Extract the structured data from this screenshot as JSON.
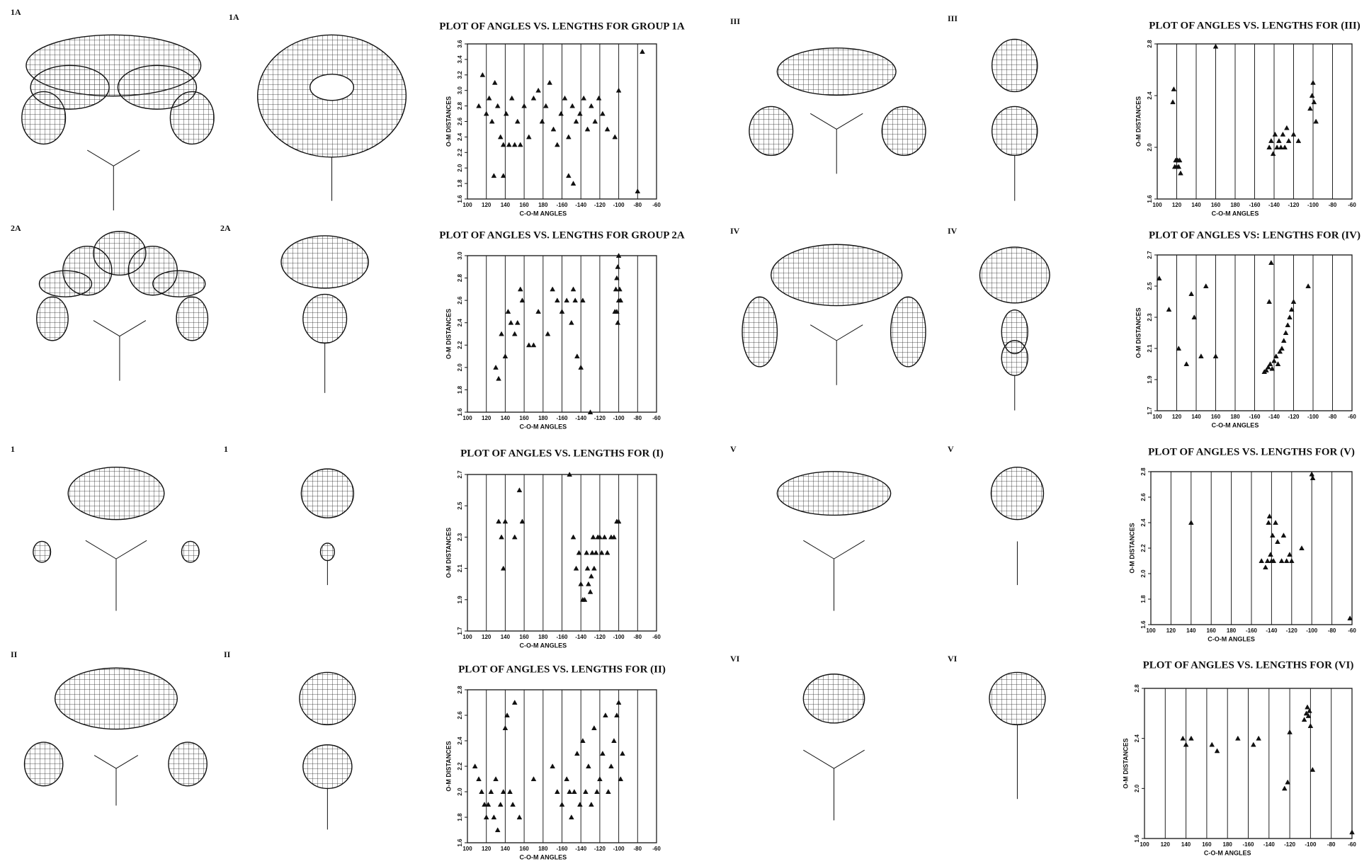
{
  "panels": [
    "1A",
    "1A",
    "2A",
    "2A",
    "1",
    "1",
    "II",
    "II",
    "III",
    "III",
    "IV",
    "IV",
    "V",
    "V",
    "VI",
    "VI"
  ],
  "chart_data": [
    {
      "type": "scatter",
      "title": "PLOT OF ANGLES VS. LENGTHS FOR GROUP 1A",
      "x_label": "C-O-M ANGLES",
      "y_label": "O-M DISTANCES",
      "marker": "triangle",
      "color": "#111",
      "grid": "x",
      "xlim": [
        100,
        -60
      ],
      "xticks": [
        100,
        120,
        140,
        160,
        180,
        -160,
        -140,
        -120,
        -100,
        -80,
        -60
      ],
      "ylim": [
        1.6,
        3.6
      ],
      "yticks": [
        1.6,
        1.8,
        {
          "value": 2,
          "label": "2.0"
        },
        2.2,
        2.4,
        2.6,
        2.8,
        {
          "value": 3,
          "label": "3.0"
        },
        3.2,
        3.4,
        3.6
      ],
      "x": [
        112,
        116,
        120,
        123,
        126,
        129,
        132,
        135,
        138,
        141,
        144,
        147,
        150,
        153,
        156,
        160,
        165,
        170,
        175,
        179,
        -177,
        -173,
        -169,
        -165,
        -161,
        -157,
        -153,
        -149,
        -145,
        -141,
        -137,
        -133,
        -129,
        -125,
        -121,
        -117,
        -112,
        -104,
        -100,
        -75,
        128,
        138,
        -153,
        -148,
        -80
      ],
      "values": [
        2.8,
        3.2,
        2.7,
        2.9,
        2.6,
        3.1,
        2.8,
        2.4,
        2.3,
        2.7,
        2.3,
        2.9,
        2.3,
        2.6,
        2.3,
        2.8,
        2.4,
        2.9,
        3.0,
        2.6,
        2.8,
        3.1,
        2.5,
        2.3,
        2.7,
        2.9,
        2.4,
        2.8,
        2.6,
        2.7,
        2.9,
        2.5,
        2.8,
        2.6,
        2.9,
        2.7,
        2.5,
        2.4,
        3.0,
        3.5,
        1.9,
        1.9,
        1.9,
        1.8,
        1.7
      ]
    },
    {
      "type": "scatter",
      "title": "PLOT OF ANGLES VS. LENGTHS FOR GROUP 2A",
      "x_label": "C-O-M ANGLES",
      "y_label": "O-M DISTANCES",
      "marker": "triangle",
      "color": "#111",
      "grid": "x",
      "xlim": [
        100,
        -60
      ],
      "xticks": [
        100,
        120,
        140,
        160,
        180,
        -160,
        -140,
        -120,
        -100,
        -80,
        -60
      ],
      "ylim": [
        1.6,
        3.0
      ],
      "yticks": [
        1.6,
        1.8,
        {
          "value": 2,
          "label": "2.0"
        },
        2.2,
        2.4,
        2.6,
        2.8,
        {
          "value": 3,
          "label": "3.0"
        }
      ],
      "x": [
        130,
        133,
        136,
        140,
        143,
        146,
        150,
        153,
        156,
        158,
        165,
        170,
        175,
        -175,
        -170,
        -165,
        -160,
        -155,
        -150,
        -148,
        -146,
        -144,
        -140,
        -138,
        -104,
        -103,
        -102,
        -101,
        -100,
        -99,
        -101,
        -102,
        -100,
        -98,
        -130
      ],
      "values": [
        2.0,
        1.9,
        2.3,
        2.1,
        2.5,
        2.4,
        2.3,
        2.4,
        2.7,
        2.6,
        2.2,
        2.2,
        2.5,
        2.3,
        2.7,
        2.6,
        2.5,
        2.6,
        2.4,
        2.7,
        2.6,
        2.1,
        2.0,
        2.6,
        2.5,
        2.7,
        2.8,
        2.9,
        2.6,
        2.7,
        2.4,
        2.5,
        3.0,
        2.6,
        1.6
      ]
    },
    {
      "type": "scatter",
      "title": "PLOT OF ANGLES VS. LENGTHS FOR (I)",
      "x_label": "C-O-M ANGLES",
      "y_label": "O-M DISTANCES",
      "marker": "triangle",
      "color": "#111",
      "grid": "x",
      "xlim": [
        100,
        -60
      ],
      "xticks": [
        100,
        120,
        140,
        160,
        180,
        -160,
        -140,
        -120,
        -100,
        -80,
        -60
      ],
      "ylim": [
        1.7,
        2.7
      ],
      "yticks": [
        1.7,
        1.9,
        2.1,
        2.3,
        2.5,
        2.7
      ],
      "x": [
        133,
        136,
        138,
        140,
        150,
        155,
        158,
        -152,
        -148,
        -145,
        -142,
        -140,
        -138,
        -136,
        -134,
        -133,
        -132,
        -130,
        -129,
        -128,
        -127,
        -126,
        -124,
        -122,
        -120,
        -118,
        -115,
        -112,
        -108,
        -105,
        -102,
        -100
      ],
      "values": [
        2.4,
        2.3,
        2.1,
        2.4,
        2.3,
        2.6,
        2.4,
        2.7,
        2.3,
        2.1,
        2.2,
        2.0,
        1.9,
        1.9,
        2.2,
        2.1,
        2.0,
        1.95,
        2.05,
        2.2,
        2.3,
        2.1,
        2.2,
        2.3,
        2.3,
        2.2,
        2.3,
        2.2,
        2.3,
        2.3,
        2.4,
        2.4
      ]
    },
    {
      "type": "scatter",
      "title": "PLOT OF ANGLES VS. LENGTHS FOR (II)",
      "x_label": "C-O-M ANGLES",
      "y_label": "O-M DISTANCES",
      "marker": "triangle",
      "color": "#111",
      "grid": "x",
      "xlim": [
        100,
        -60
      ],
      "xticks": [
        100,
        120,
        140,
        160,
        180,
        -160,
        -140,
        -120,
        -100,
        -80,
        -60
      ],
      "ylim": [
        1.6,
        2.8
      ],
      "yticks": [
        1.6,
        1.8,
        {
          "value": 2,
          "label": "2.0"
        },
        2.2,
        2.4,
        2.6,
        2.8
      ],
      "x": [
        108,
        112,
        115,
        118,
        120,
        122,
        125,
        128,
        130,
        132,
        135,
        138,
        140,
        142,
        145,
        148,
        150,
        155,
        170,
        -170,
        -165,
        -160,
        -155,
        -152,
        -150,
        -147,
        -144,
        -141,
        -138,
        -135,
        -132,
        -129,
        -126,
        -123,
        -120,
        -117,
        -114,
        -111,
        -108,
        -105,
        -102,
        -100,
        -98,
        -96
      ],
      "values": [
        2.2,
        2.1,
        2.0,
        1.9,
        1.8,
        1.9,
        2.0,
        1.8,
        2.1,
        1.7,
        1.9,
        2.0,
        2.5,
        2.6,
        2.0,
        1.9,
        2.7,
        1.8,
        2.1,
        2.2,
        2.0,
        1.9,
        2.1,
        2.0,
        1.8,
        2.0,
        2.3,
        1.9,
        2.4,
        2.0,
        2.2,
        1.9,
        2.5,
        2.0,
        2.1,
        2.3,
        2.6,
        2.0,
        2.2,
        2.4,
        2.6,
        2.7,
        2.1,
        2.3
      ]
    },
    {
      "type": "scatter",
      "title": "PLOT OF ANGLES VS. LENGTHS FOR (III)",
      "x_label": "C-O-M ANGLES",
      "y_label": "O-M DISTANCES",
      "marker": "triangle",
      "color": "#111",
      "grid": "x",
      "xlim": [
        100,
        -60
      ],
      "xticks": [
        100,
        120,
        140,
        160,
        180,
        -160,
        -140,
        -120,
        -100,
        -80,
        -60
      ],
      "ylim": [
        1.6,
        2.8
      ],
      "yticks": [
        1.6,
        {
          "value": 2,
          "label": "2.0"
        },
        2.4,
        2.8
      ],
      "x": [
        116,
        117,
        118,
        119,
        120,
        121,
        122,
        123,
        124,
        160,
        -145,
        -143,
        -141,
        -139,
        -137,
        -135,
        -133,
        -131,
        -129,
        -127,
        -125,
        -120,
        -115,
        -103,
        -101,
        -100,
        -99,
        -97
      ],
      "values": [
        2.35,
        2.45,
        1.85,
        1.9,
        1.85,
        1.9,
        1.85,
        1.9,
        1.8,
        2.78,
        2.0,
        2.05,
        1.95,
        2.1,
        2.0,
        2.05,
        2.0,
        2.1,
        2.0,
        2.15,
        2.05,
        2.1,
        2.05,
        2.3,
        2.4,
        2.5,
        2.35,
        2.2
      ]
    },
    {
      "type": "scatter",
      "title": "PLOT OF ANGLES VS: LENGTHS FOR (IV)",
      "x_label": "C-O-M ANGLES",
      "y_label": "O-M DISTANCES",
      "marker": "triangle",
      "color": "#111",
      "grid": "x",
      "xlim": [
        100,
        -60
      ],
      "xticks": [
        100,
        120,
        140,
        160,
        180,
        -160,
        -140,
        -120,
        -100,
        -80,
        -60
      ],
      "ylim": [
        1.7,
        2.7
      ],
      "yticks": [
        1.7,
        1.9,
        2.1,
        2.3,
        2.5,
        2.7
      ],
      "x": [
        102,
        112,
        122,
        130,
        135,
        138,
        145,
        150,
        160,
        -150,
        -148,
        -146,
        -144,
        -142,
        -140,
        -138,
        -136,
        -134,
        -132,
        -130,
        -128,
        -126,
        -124,
        -122,
        -120,
        -105,
        -143,
        -145
      ],
      "values": [
        2.55,
        2.35,
        2.1,
        2.0,
        2.45,
        2.3,
        2.05,
        2.5,
        2.05,
        1.95,
        1.96,
        1.98,
        2.0,
        1.97,
        2.02,
        2.05,
        2.0,
        2.08,
        2.1,
        2.15,
        2.2,
        2.25,
        2.3,
        2.35,
        2.4,
        2.5,
        2.65,
        2.4
      ]
    },
    {
      "type": "scatter",
      "title": "PLOT OF ANGLES VS. LENGTHS FOR (V)",
      "x_label": "C-O-M ANGLES",
      "y_label": "O-M DISTANCES",
      "marker": "triangle",
      "color": "#111",
      "grid": "x",
      "xlim": [
        100,
        -60
      ],
      "xticks": [
        100,
        120,
        140,
        160,
        180,
        -160,
        -140,
        -120,
        -100,
        -80,
        -60
      ],
      "ylim": [
        1.6,
        2.8
      ],
      "yticks": [
        1.6,
        1.8,
        {
          "value": 2,
          "label": "2.0"
        },
        2.2,
        2.4,
        2.6,
        2.8
      ],
      "x": [
        140,
        -150,
        -146,
        -144,
        -143,
        -142,
        -141,
        -140,
        -139,
        -138,
        -136,
        -134,
        -130,
        -128,
        -125,
        -122,
        -120,
        -110,
        -100,
        -99,
        -62
      ],
      "values": [
        2.4,
        2.1,
        2.05,
        2.1,
        2.4,
        2.45,
        2.15,
        2.1,
        2.3,
        2.1,
        2.4,
        2.25,
        2.1,
        2.3,
        2.1,
        2.15,
        2.1,
        2.2,
        2.78,
        2.75,
        1.65
      ]
    },
    {
      "type": "scatter",
      "title": "PLOT OF ANGLES VS. LENGTHS FOR (VI)",
      "x_label": "C-O-M ANGLES",
      "y_label": "O-M DISTANCES",
      "marker": "triangle",
      "color": "#111",
      "grid": "x",
      "xlim": [
        100,
        -60
      ],
      "xticks": [
        100,
        120,
        140,
        160,
        180,
        -160,
        -140,
        -120,
        -100,
        -80,
        -60
      ],
      "ylim": [
        1.6,
        2.8
      ],
      "yticks": [
        1.6,
        {
          "value": 2,
          "label": "2.0"
        },
        2.4,
        2.8
      ],
      "x": [
        137,
        140,
        145,
        165,
        170,
        -170,
        -155,
        -150,
        -125,
        -122,
        -120,
        -106,
        -104,
        -103,
        -102,
        -101,
        -100,
        -98,
        -60
      ],
      "values": [
        2.4,
        2.35,
        2.4,
        2.35,
        2.3,
        2.4,
        2.35,
        2.4,
        2.0,
        2.05,
        2.45,
        2.55,
        2.6,
        2.65,
        2.58,
        2.62,
        2.5,
        2.15,
        1.65
      ]
    }
  ]
}
